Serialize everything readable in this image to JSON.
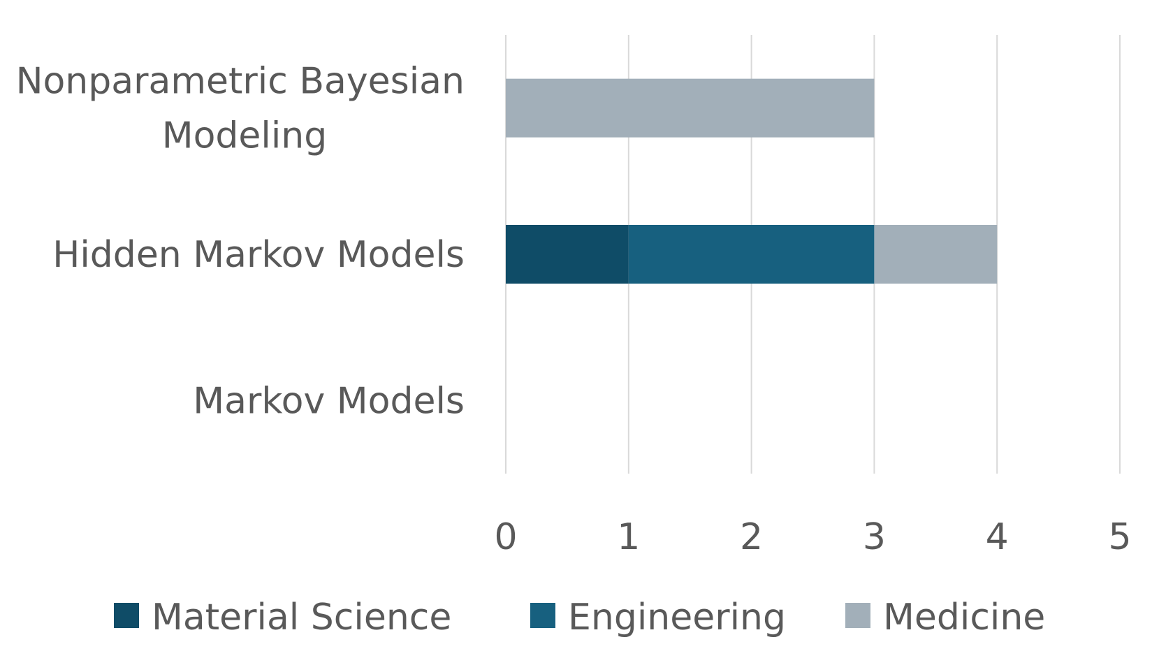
{
  "chart_data": {
    "type": "bar",
    "orientation": "horizontal",
    "stacked": true,
    "categories": [
      [
        "Nonparametric Bayesian",
        "Modeling"
      ],
      [
        "Hidden Markov Models"
      ],
      [
        "Markov Models"
      ]
    ],
    "series": [
      {
        "name": "Material Science",
        "color": "#0f4c67",
        "values": [
          0,
          1,
          0
        ]
      },
      {
        "name": "Engineering",
        "color": "#17607f",
        "values": [
          0,
          2,
          0
        ]
      },
      {
        "name": "Medicine",
        "color": "#a2afb9",
        "values": [
          3,
          1,
          0
        ]
      }
    ],
    "xlim": [
      0,
      5
    ],
    "xticks": [
      "0",
      "1",
      "2",
      "3",
      "4",
      "5"
    ],
    "grid": true,
    "legend_position": "bottom",
    "title": "",
    "xlabel": "",
    "ylabel": ""
  }
}
